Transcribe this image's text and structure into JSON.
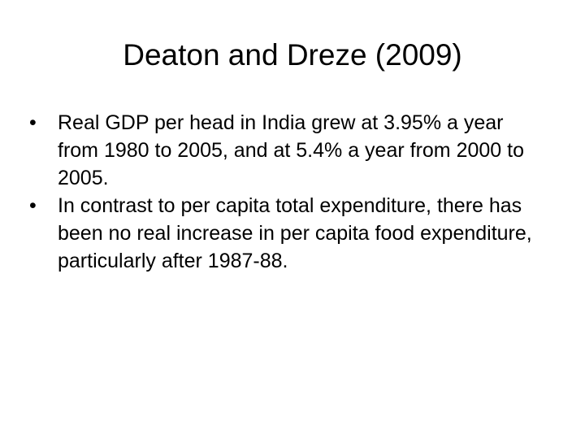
{
  "slide": {
    "title": "Deaton and Dreze (2009)",
    "bullet_glyph": "•",
    "bullets": [
      {
        "text": "Real GDP per head in India grew at 3.95% a year from 1980 to 2005, and at 5.4% a year from 2000 to 2005."
      },
      {
        "text": "In contrast to per capita total expenditure, there has been no real increase in per capita food expenditure, particularly after 1987-88."
      }
    ]
  }
}
